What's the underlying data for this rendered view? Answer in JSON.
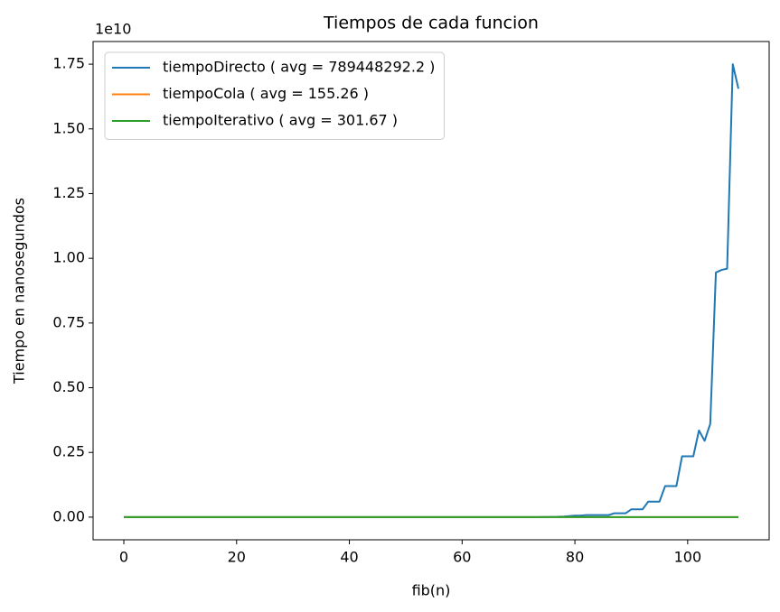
{
  "chart_data": {
    "type": "line",
    "title": "Tiempos de cada funcion",
    "x_label": "fib(n)",
    "y_label": "Tiempo en nanosegundos",
    "y_offset_label": "1e10",
    "x": [
      0,
      1,
      2,
      3,
      4,
      5,
      6,
      7,
      8,
      9,
      10,
      11,
      12,
      13,
      14,
      15,
      16,
      17,
      18,
      19,
      20,
      21,
      22,
      23,
      24,
      25,
      26,
      27,
      28,
      29,
      30,
      31,
      32,
      33,
      34,
      35,
      36,
      37,
      38,
      39,
      40,
      41,
      42,
      43,
      44,
      45,
      46,
      47,
      48,
      49,
      50,
      51,
      52,
      53,
      54,
      55,
      56,
      57,
      58,
      59,
      60,
      61,
      62,
      63,
      64,
      65,
      66,
      67,
      68,
      69,
      70,
      71,
      72,
      73,
      74,
      75,
      76,
      77,
      78,
      79,
      80,
      81,
      82,
      83,
      84,
      85,
      86,
      87,
      88,
      89,
      90,
      91,
      92,
      93,
      94,
      95,
      96,
      97,
      98,
      99,
      100,
      101,
      102,
      103,
      104,
      105,
      106,
      107,
      108,
      109
    ],
    "series": [
      {
        "name": "tiempoDirecto ( avg = 789448292.2 )",
        "color": "#1f77b4",
        "values": [
          0,
          0,
          0,
          0,
          0,
          0,
          0,
          0,
          0,
          0,
          0,
          0,
          0,
          0,
          0,
          0,
          0,
          0,
          0,
          0,
          0,
          0,
          0,
          0,
          0,
          0,
          0,
          0,
          0,
          0,
          0,
          0,
          0,
          0,
          0,
          0,
          0,
          0,
          0,
          0,
          0,
          0,
          0,
          0,
          0,
          0,
          0,
          0,
          0,
          0,
          0,
          0,
          0,
          0,
          0,
          0,
          0,
          0,
          0,
          0,
          0,
          0,
          0,
          0,
          0,
          0,
          0,
          0,
          0,
          0,
          0.0001,
          0.0001,
          0.0002,
          0.0003,
          0.0004,
          0.0006,
          0.001,
          0.0015,
          0.0025,
          0.004,
          0.006,
          0.006,
          0.008,
          0.008,
          0.008,
          0.008,
          0.008,
          0.015,
          0.015,
          0.015,
          0.03,
          0.03,
          0.03,
          0.06,
          0.06,
          0.06,
          0.12,
          0.12,
          0.12,
          0.235,
          0.235,
          0.235,
          0.335,
          0.295,
          0.36,
          0.945,
          0.955,
          0.96,
          1.75,
          1.655
        ]
      },
      {
        "name": "tiempoCola ( avg = 155.26 )",
        "color": "#ff7f0e",
        "values": [
          0,
          0,
          0,
          0,
          0,
          0,
          0,
          0,
          0,
          0,
          0,
          0,
          0,
          0,
          0,
          0,
          0,
          0,
          0,
          0,
          0,
          0,
          0,
          0,
          0,
          0,
          0,
          0,
          0,
          0,
          0,
          0,
          0,
          0,
          0,
          0,
          0,
          0,
          0,
          0,
          0,
          0,
          0,
          0,
          0,
          0,
          0,
          0,
          0,
          0,
          0,
          0,
          0,
          0,
          0,
          0,
          0,
          0,
          0,
          0,
          0,
          0,
          0,
          0,
          0,
          0,
          0,
          0,
          0,
          0,
          0,
          0,
          0,
          0,
          0,
          0,
          0,
          0,
          0,
          0,
          0,
          0,
          0,
          0,
          0,
          0,
          0,
          0,
          0,
          0,
          0,
          0,
          0,
          0,
          0,
          0,
          0,
          0,
          0,
          0,
          0,
          0,
          0,
          0,
          0,
          0,
          0,
          0,
          0,
          0
        ]
      },
      {
        "name": "tiempoIterativo ( avg = 301.67 )",
        "color": "#2ca02c",
        "values": [
          0,
          0,
          0,
          0,
          0,
          0,
          0,
          0,
          0,
          0,
          0,
          0,
          0,
          0,
          0,
          0,
          0,
          0,
          0,
          0,
          0,
          0,
          0,
          0,
          0,
          0,
          0,
          0,
          0,
          0,
          0,
          0,
          0,
          0,
          0,
          0,
          0,
          0,
          0,
          0,
          0,
          0,
          0,
          0,
          0,
          0,
          0,
          0,
          0,
          0,
          0,
          0,
          0,
          0,
          0,
          0,
          0,
          0,
          0,
          0,
          0,
          0,
          0,
          0,
          0,
          0,
          0,
          0,
          0,
          0,
          0,
          0,
          0,
          0,
          0,
          0,
          0,
          0,
          0,
          0,
          0,
          0,
          0,
          0,
          0,
          0,
          0,
          0,
          0,
          0,
          0,
          0,
          0,
          0,
          0,
          0,
          0,
          0,
          0,
          0,
          0,
          0,
          0,
          0,
          0,
          0,
          0,
          0,
          0,
          0
        ]
      }
    ],
    "xlim": [
      -5.45,
      114.45
    ],
    "xticks": [
      0,
      20,
      40,
      60,
      80,
      100
    ],
    "ylim": [
      -0.0875,
      1.8375
    ],
    "yticks": [
      {
        "value": 0,
        "label": "0.00"
      },
      {
        "value": 0.25,
        "label": "0.25"
      },
      {
        "value": 0.5,
        "label": "0.50"
      },
      {
        "value": 0.75,
        "label": "0.75"
      },
      {
        "value": 1,
        "label": "1.00"
      },
      {
        "value": 1.25,
        "label": "1.25"
      },
      {
        "value": 1.5,
        "label": "1.50"
      },
      {
        "value": 1.75,
        "label": "1.75"
      }
    ],
    "grid": false,
    "legend": "upper left"
  }
}
